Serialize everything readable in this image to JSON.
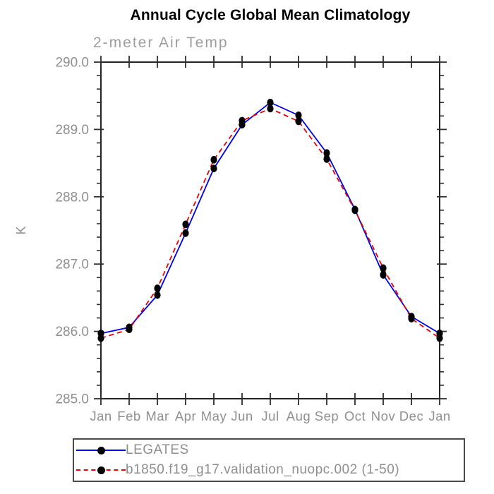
{
  "header": {
    "title": "Annual Cycle Global Mean Climatology",
    "subtitle": "2-meter Air Temp"
  },
  "chart_data": {
    "type": "line",
    "title": "Annual Cycle Global Mean Climatology",
    "subtitle": "2-meter Air Temp",
    "xlabel": "",
    "ylabel": "K",
    "categories": [
      "Jan",
      "Feb",
      "Mar",
      "Apr",
      "May",
      "Jun",
      "Jul",
      "Aug",
      "Sep",
      "Oct",
      "Nov",
      "Dec",
      "Jan"
    ],
    "series": [
      {
        "name": "LEGATES",
        "color": "#0000ee",
        "line_style": "solid",
        "marker": "black-dot",
        "values": [
          285.97,
          286.06,
          286.54,
          287.46,
          288.42,
          289.07,
          289.4,
          289.21,
          288.65,
          287.81,
          286.84,
          286.22,
          285.97
        ]
      },
      {
        "name": "b1850.f19_g17.validation_nuopc.002 (1-50)",
        "color": "#ee0000",
        "line_style": "dashed",
        "marker": "black-dot",
        "values": [
          285.9,
          286.03,
          286.64,
          287.59,
          288.55,
          289.13,
          289.31,
          289.12,
          288.56,
          287.8,
          286.94,
          286.19,
          285.9
        ]
      }
    ],
    "ylim": [
      285.0,
      290.0
    ],
    "y_major_step": 1.0,
    "y_minor_step": 0.2,
    "y_tick_labels": [
      "285.0",
      "286.0",
      "287.0",
      "288.0",
      "289.0",
      "290.0"
    ],
    "grid": false,
    "legend_position": "bottom"
  },
  "colors": {
    "frame": "#222222",
    "tick": "#2e2e2e",
    "tick_label": "#8f8f8f",
    "marker": "#000000",
    "legend_border": "#4a4a4a"
  }
}
